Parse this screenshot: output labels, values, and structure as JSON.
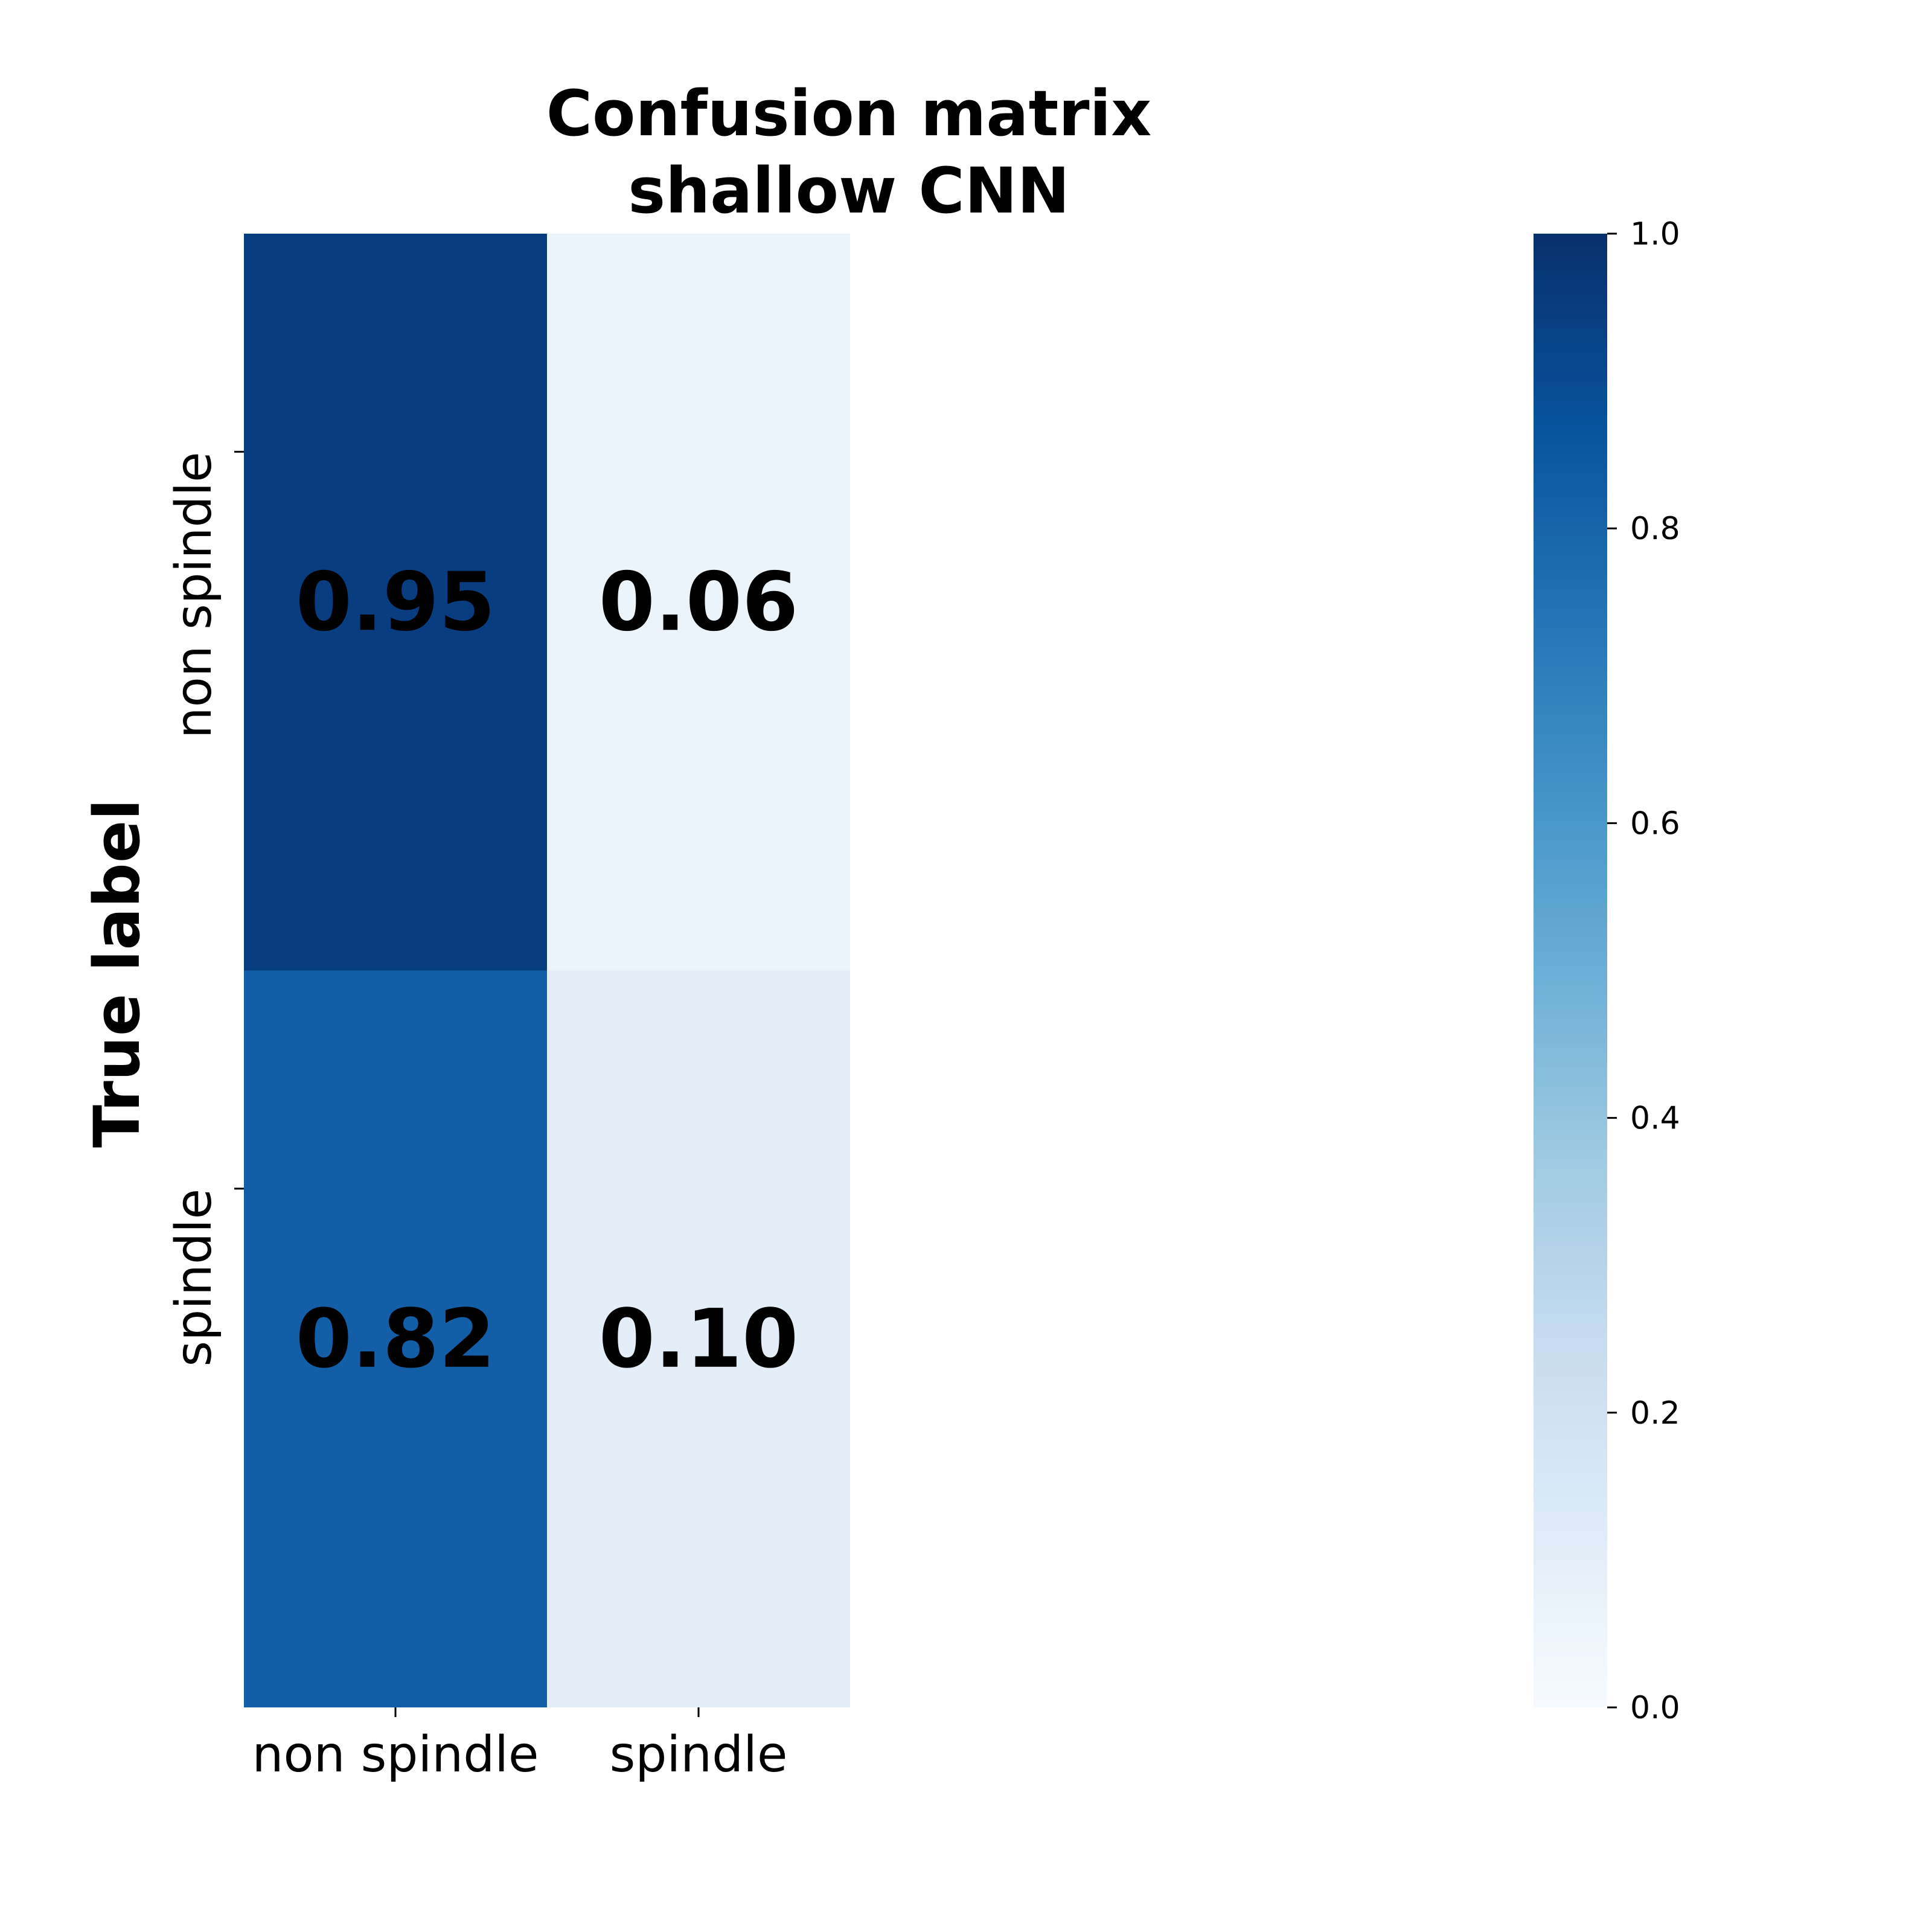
{
  "chart_data": {
    "type": "heatmap",
    "title": "Confusion matrix",
    "subtitle": "shallow CNN",
    "ylabel": "True label",
    "xlabel": "",
    "x_categories": [
      "non spindle",
      "spindle"
    ],
    "y_categories": [
      "non spindle",
      "spindle"
    ],
    "values": [
      [
        0.95,
        0.06
      ],
      [
        0.82,
        0.1
      ]
    ],
    "value_labels": [
      [
        "0.95",
        "0.06"
      ],
      [
        "0.82",
        "0.10"
      ]
    ],
    "colormap": "Blues",
    "colorbar": {
      "range": [
        0.0,
        1.0
      ],
      "ticks": [
        0.0,
        0.2,
        0.4,
        0.6,
        0.8,
        1.0
      ],
      "tick_labels": [
        "0.0",
        "0.2",
        "0.4",
        "0.6",
        "0.8",
        "1.0"
      ]
    },
    "grid": false
  }
}
